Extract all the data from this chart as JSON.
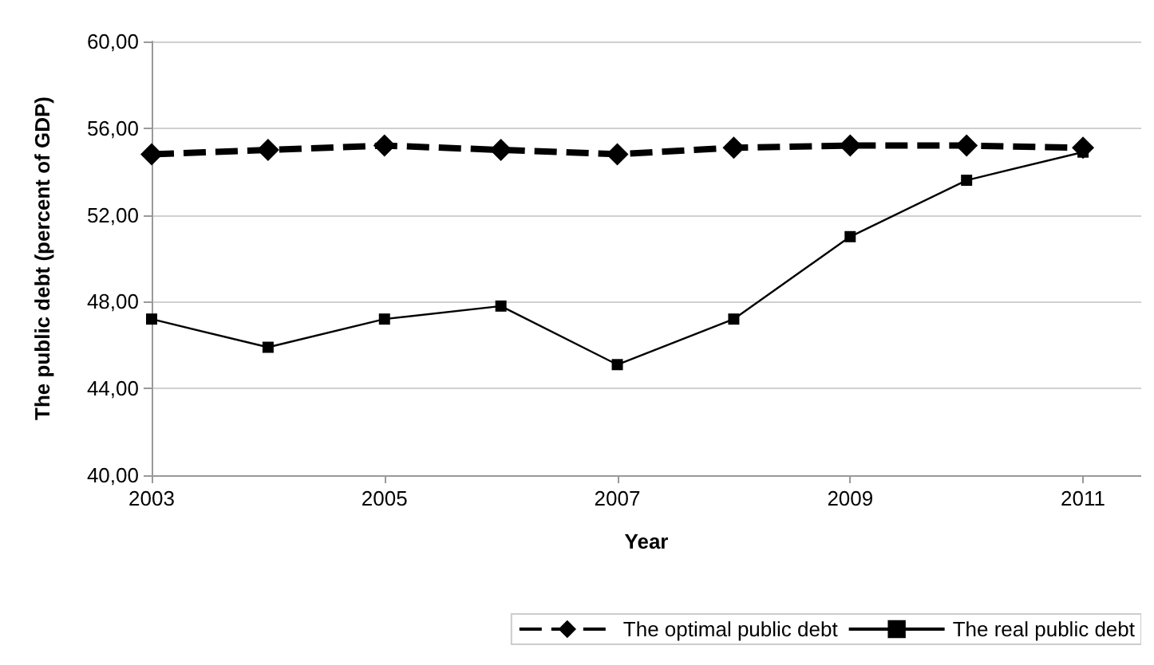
{
  "chart_data": {
    "type": "line",
    "xlabel": "Year",
    "ylabel": "The public debt (percent of GDP)",
    "x": [
      2003,
      2004,
      2005,
      2006,
      2007,
      2008,
      2009,
      2010,
      2011
    ],
    "series": [
      {
        "name": "The optimal public debt",
        "color": "#000000",
        "marker": "diamond",
        "line_style": "dashed",
        "values": [
          54.8,
          55.0,
          55.2,
          55.0,
          54.8,
          55.1,
          55.2,
          55.2,
          55.1
        ]
      },
      {
        "name": "The real public debt",
        "color": "#000000",
        "marker": "square",
        "line_style": "solid",
        "values": [
          47.2,
          45.9,
          47.2,
          47.8,
          45.1,
          47.2,
          51.0,
          53.6,
          54.9
        ]
      }
    ],
    "xlim": [
      2003,
      2011.5
    ],
    "xticks": [
      2003,
      2005,
      2007,
      2009,
      2011
    ],
    "ylim": [
      40,
      60
    ],
    "yticks": [
      {
        "value": 40,
        "label": "40,00"
      },
      {
        "value": 44,
        "label": "44,00"
      },
      {
        "value": 48,
        "label": "48,00"
      },
      {
        "value": 52,
        "label": "52,00"
      },
      {
        "value": 56,
        "label": "56,00"
      },
      {
        "value": 60,
        "label": "60,00"
      }
    ],
    "grid": "y",
    "legend": "bottom"
  }
}
